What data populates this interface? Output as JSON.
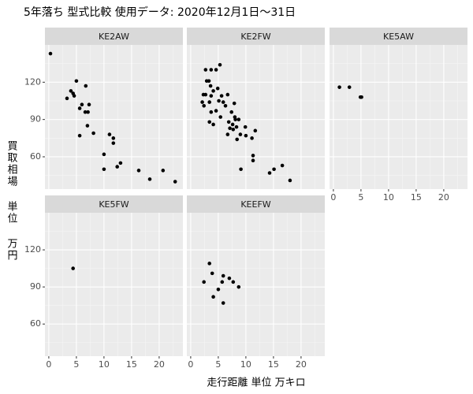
{
  "chart_data": {
    "type": "scatter",
    "title": "5年落ち 型式比較 使用データ: 2020年12月1日～31日",
    "xlabel": "走行距離 単位 万キロ",
    "ylabel": "買取相場 単位 万円",
    "xlim": [
      -0.7,
      24.3
    ],
    "ylim": [
      34,
      150
    ],
    "xticks": [
      0,
      5,
      10,
      15,
      20
    ],
    "yticks": [
      60,
      90,
      120
    ],
    "grid": true,
    "color": "#000000",
    "facets": [
      {
        "name": "KE2AW",
        "x": [
          0.3,
          3.3,
          4,
          4.4,
          4.6,
          5,
          6.7,
          6,
          5.6,
          6.6,
          7.1,
          7.3,
          5.6,
          7,
          8.1,
          11,
          11.7,
          11.7,
          10,
          13,
          12.4,
          10,
          16.3,
          18.3,
          20.7,
          22.9
        ],
        "values": [
          143,
          107,
          113,
          111,
          109,
          121,
          117,
          102,
          99,
          96,
          96,
          102,
          77,
          85,
          79,
          78,
          75,
          71,
          62,
          55,
          52,
          50,
          49,
          42,
          49,
          40
        ]
      },
      {
        "name": "KE2FW",
        "x": [
          2.7,
          3.7,
          5.3,
          4.6,
          2.9,
          3.3,
          2.7,
          2.3,
          3.6,
          2.1,
          2.4,
          3.7,
          4.1,
          3.4,
          4.9,
          5.6,
          5.1,
          5.9,
          6.7,
          6.3,
          7.9,
          4.6,
          3.7,
          7.4,
          5.4,
          3.4,
          4.1,
          6.9,
          8,
          8.1,
          7.6,
          7.1,
          6.7,
          7.7,
          8.3,
          9,
          8.4,
          8.7,
          9.9,
          10,
          11.1,
          11.7,
          11.3,
          11.3,
          9.1,
          14.3,
          15.1,
          16.6,
          18
        ],
        "values": [
          130,
          130,
          134,
          130,
          121,
          121,
          110,
          110,
          117,
          104,
          101,
          109,
          113,
          104,
          115,
          109,
          105,
          104,
          110,
          101,
          103,
          97,
          96,
          96,
          92,
          88,
          86,
          88,
          92,
          90,
          86,
          83,
          78,
          82,
          84,
          78,
          74,
          90,
          84,
          77,
          75,
          81,
          61,
          57,
          50,
          47,
          50,
          53,
          41
        ]
      },
      {
        "name": "KE5AW",
        "x": [
          1.1,
          2.9,
          4.9,
          5.1
        ],
        "values": [
          116,
          116,
          108,
          108
        ]
      },
      {
        "name": "KE5FW",
        "x": [
          4.4
        ],
        "values": [
          105
        ]
      },
      {
        "name": "KEEFW",
        "x": [
          3.4,
          3.9,
          2.4,
          5.9,
          7,
          5.7,
          7.7,
          8.7,
          5,
          4.1,
          5.9
        ],
        "values": [
          109,
          101,
          94,
          99,
          97,
          94,
          94,
          90,
          88,
          82,
          77
        ]
      }
    ]
  }
}
